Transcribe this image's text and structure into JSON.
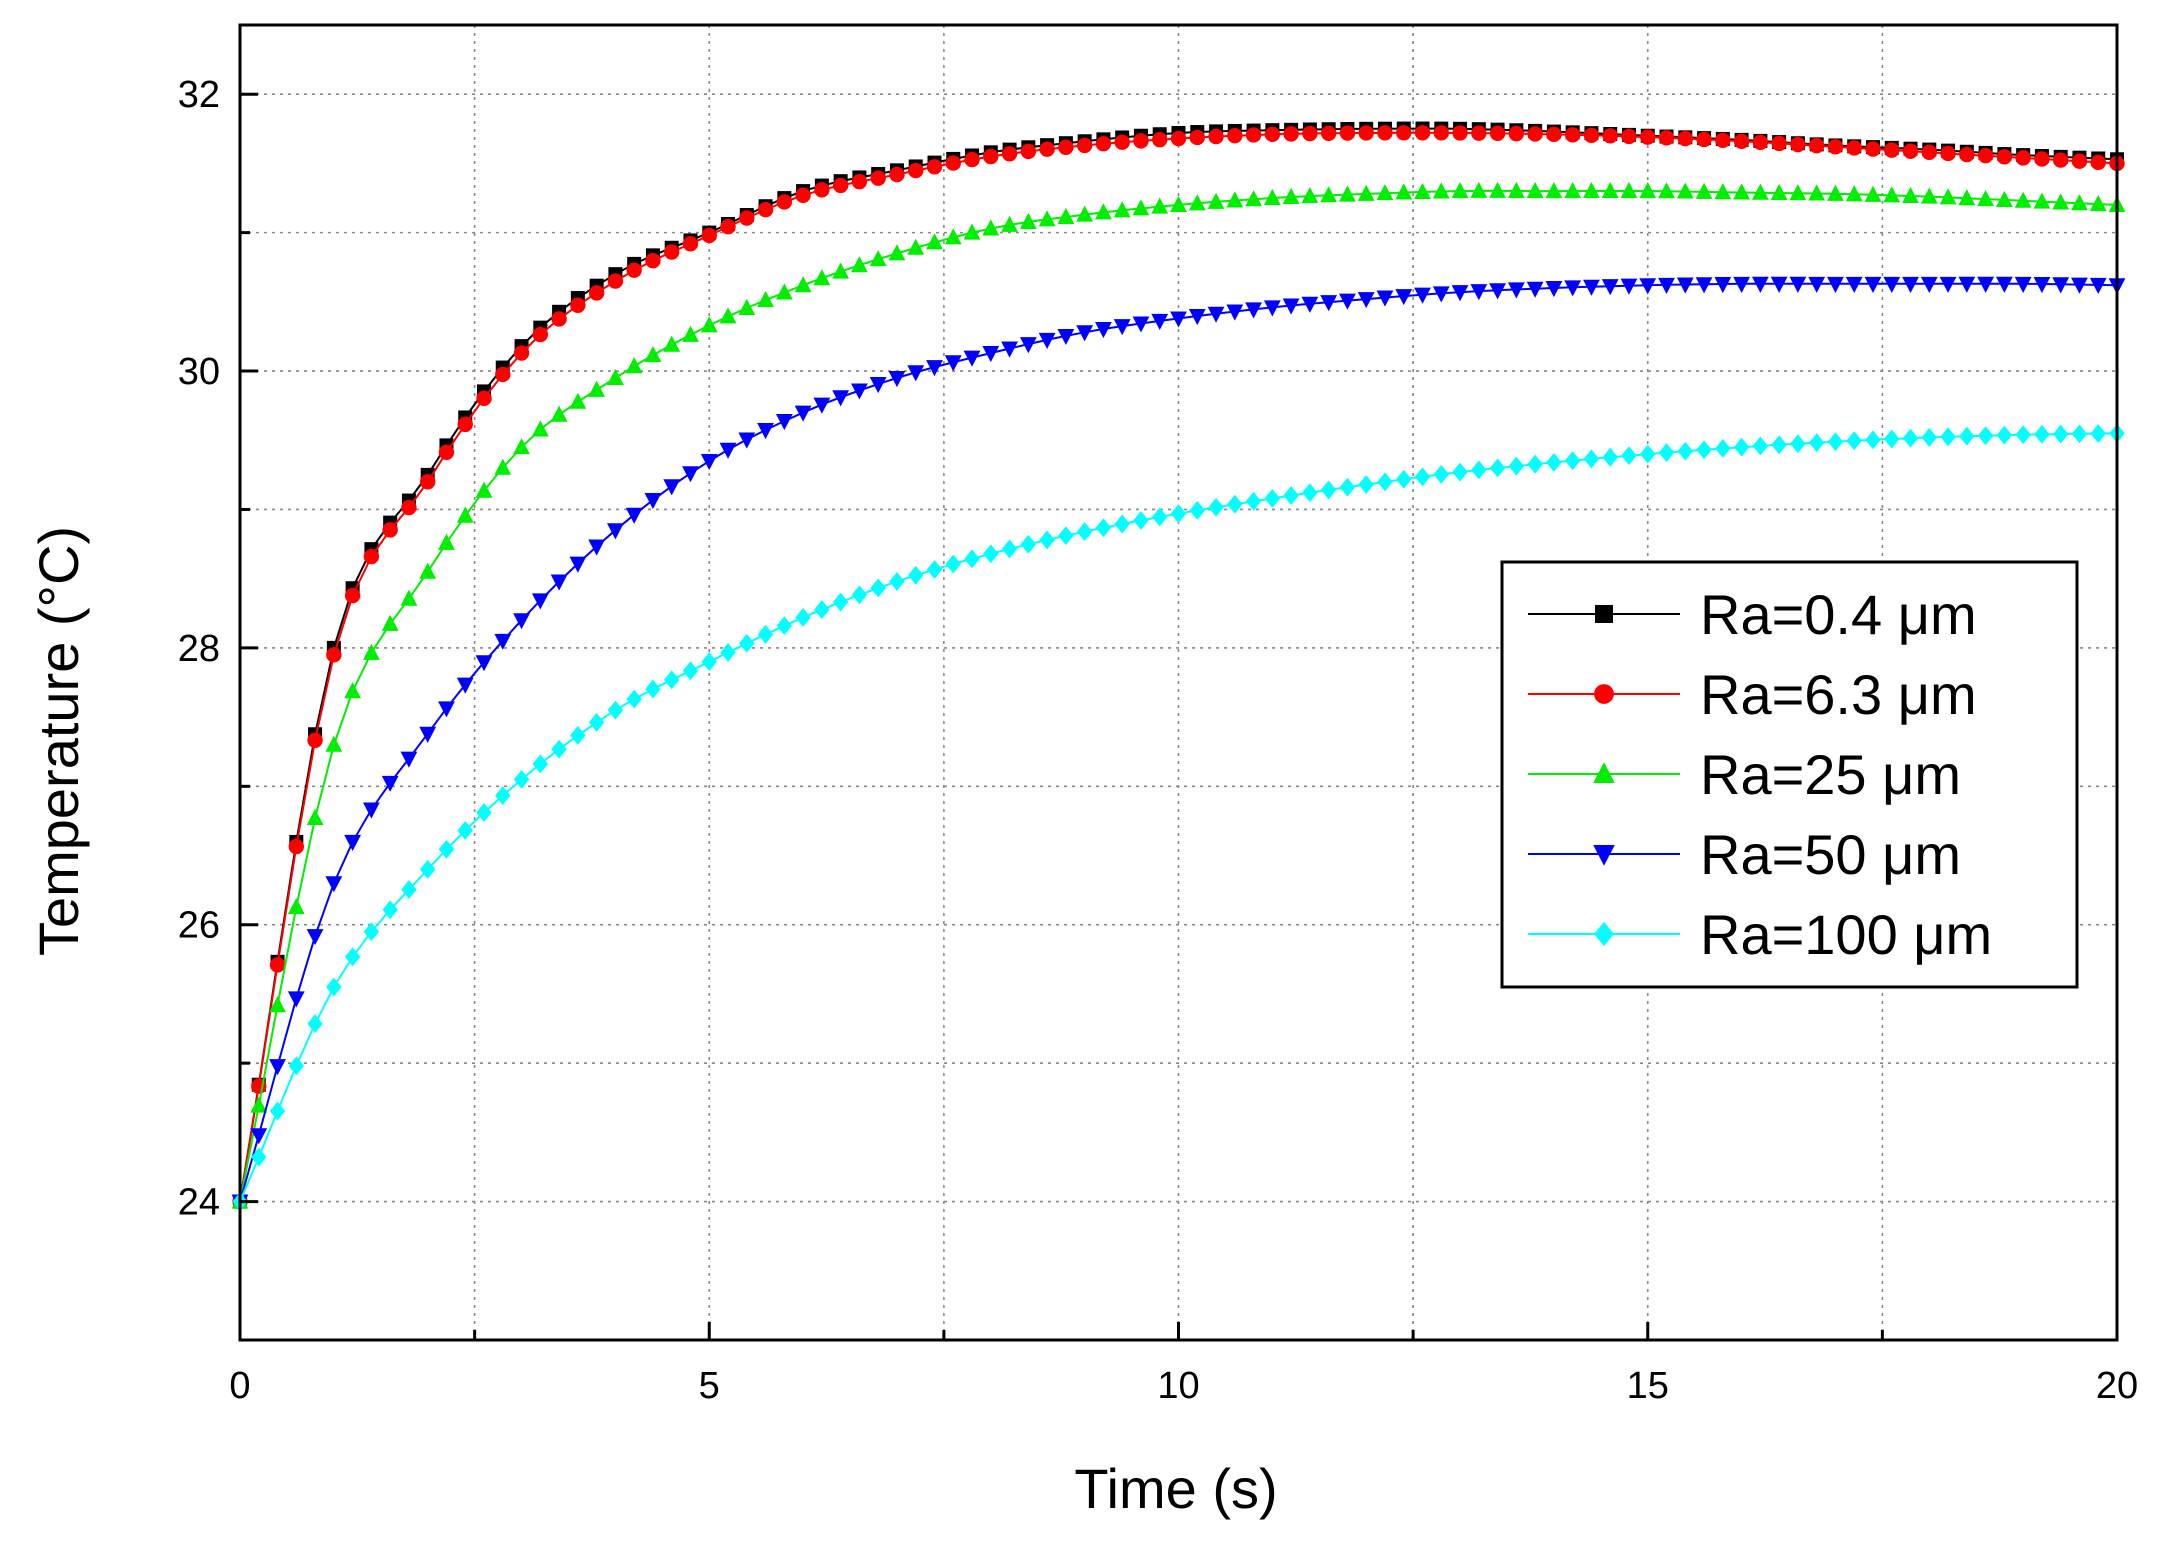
{
  "chart_data": {
    "type": "line",
    "title": "",
    "xlabel": "Time (s)",
    "ylabel": "Temperature (°C)",
    "xlim": [
      0,
      20
    ],
    "ylim": [
      23,
      32.5
    ],
    "x_ticks": [
      0,
      5,
      10,
      15,
      20
    ],
    "x_tick_labels": [
      "0",
      "5",
      "10",
      "15",
      "20"
    ],
    "y_ticks": [
      24,
      26,
      28,
      30,
      32
    ],
    "y_tick_labels": [
      "24",
      "26",
      "28",
      "30",
      "32"
    ],
    "grid": true,
    "legend_position": "right-center",
    "x": [
      0,
      1,
      2,
      3,
      4,
      5,
      6,
      7,
      8,
      9,
      10,
      11,
      12,
      13,
      14,
      15,
      16,
      17,
      18,
      19,
      20
    ],
    "series": [
      {
        "name": "Ra=0.4 μm",
        "color": "#000000",
        "marker": "square",
        "values": [
          24.0,
          28.0,
          29.25,
          30.18,
          30.7,
          31.0,
          31.3,
          31.45,
          31.58,
          31.66,
          31.72,
          31.74,
          31.75,
          31.75,
          31.73,
          31.7,
          31.67,
          31.63,
          31.6,
          31.56,
          31.53
        ]
      },
      {
        "name": "Ra=6.3 μm",
        "color": "#ff0000",
        "marker": "circle",
        "values": [
          24.0,
          27.95,
          29.2,
          30.13,
          30.65,
          30.98,
          31.27,
          31.42,
          31.55,
          31.63,
          31.68,
          31.71,
          31.72,
          31.72,
          31.71,
          31.69,
          31.66,
          31.62,
          31.58,
          31.54,
          31.5
        ]
      },
      {
        "name": "Ra=25 μm",
        "color": "#00ee00",
        "marker": "triangle-up",
        "values": [
          24.0,
          27.3,
          28.55,
          29.45,
          29.95,
          30.33,
          30.62,
          30.85,
          31.03,
          31.13,
          31.2,
          31.25,
          31.28,
          31.3,
          31.3,
          31.3,
          31.29,
          31.28,
          31.26,
          31.23,
          31.2
        ]
      },
      {
        "name": "Ra=50 μm",
        "color": "#0000ff",
        "marker": "triangle-down",
        "values": [
          24.0,
          26.3,
          27.38,
          28.2,
          28.85,
          29.35,
          29.7,
          29.95,
          30.13,
          30.28,
          30.38,
          30.46,
          30.52,
          30.57,
          30.6,
          30.62,
          30.63,
          30.63,
          30.63,
          30.63,
          30.62
        ]
      },
      {
        "name": "Ra=100 μm",
        "color": "#00ffff",
        "marker": "diamond",
        "values": [
          24.0,
          25.55,
          26.4,
          27.05,
          27.55,
          27.9,
          28.22,
          28.48,
          28.68,
          28.84,
          28.97,
          29.08,
          29.18,
          29.27,
          29.34,
          29.4,
          29.45,
          29.49,
          29.52,
          29.54,
          29.55
        ]
      }
    ]
  }
}
